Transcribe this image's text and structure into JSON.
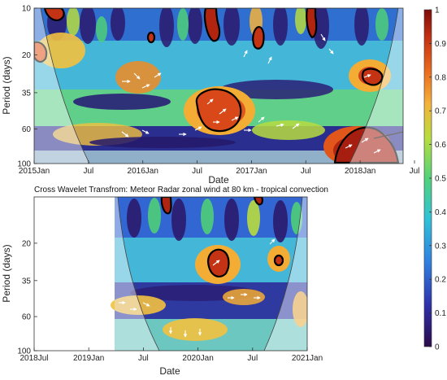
{
  "chart_data": [
    {
      "type": "heatmap",
      "title": "",
      "xlabel": "Date",
      "ylabel": "Period (days)",
      "x_ticks": [
        "2015Jan",
        "Jul",
        "2016Jan",
        "Jul",
        "2017Jan",
        "Jul",
        "2018Jan",
        "Jul"
      ],
      "y_ticks": [
        "10",
        "20",
        "35",
        "60",
        "100"
      ],
      "y_scale": "log",
      "y_reversed": true,
      "significant_regions": [
        {
          "date": "2015Feb",
          "period_days": 12
        },
        {
          "date": "2015Jan",
          "period_days": 21
        },
        {
          "date": "2016Mar",
          "period_days": 17
        },
        {
          "date": "2016Sep",
          "period_days": 11
        },
        {
          "date": "2016Sep",
          "period_days": 45
        },
        {
          "date": "2017Feb",
          "period_days": 17
        },
        {
          "date": "2017Aug",
          "period_days": 12
        },
        {
          "date": "2017Mar",
          "period_days": 23
        },
        {
          "date": "2018Feb",
          "period_days": 30
        },
        {
          "date": "2018Jan",
          "period_days": 85
        }
      ]
    },
    {
      "type": "heatmap",
      "title": "Cross Wavelet Transfrom: Meteor Radar zonal wind at 80 km - tropical convection",
      "xlabel": "Date",
      "ylabel": "Period (days)",
      "x_ticks": [
        "2018Jul",
        "2019Jan",
        "Jul",
        "2020Jan",
        "Jul",
        "2021Jan"
      ],
      "y_ticks": [
        "20",
        "35",
        "60",
        "100"
      ],
      "y_scale": "log",
      "y_reversed": true,
      "significant_regions": [
        {
          "date": "2019Oct",
          "period_days": 11
        },
        {
          "date": "2020Jul",
          "period_days": 11
        },
        {
          "date": "2020Mar",
          "period_days": 30
        },
        {
          "date": "2020Oct",
          "period_days": 28
        }
      ]
    }
  ],
  "colorbar": {
    "ticks": [
      "1",
      "0.9",
      "0.8",
      "0.7",
      "0.6",
      "0.5",
      "0.4",
      "0.3",
      "0.2",
      "0.1",
      "0"
    ],
    "min": 0,
    "max": 1,
    "colormap": "jet-like (dark navy to dark red)"
  }
}
